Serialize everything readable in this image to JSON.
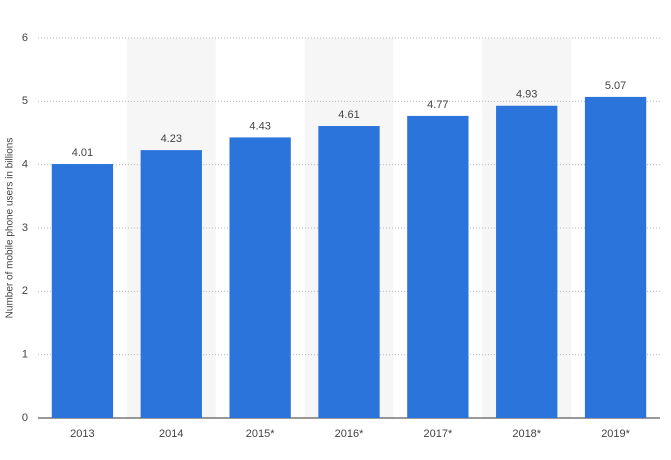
{
  "chart_data": {
    "type": "bar",
    "y_axis_label": "Number of mobile phone users in billions",
    "categories": [
      "2013",
      "2014",
      "2015*",
      "2016*",
      "2017*",
      "2018*",
      "2019*"
    ],
    "values": [
      4.01,
      4.23,
      4.43,
      4.61,
      4.77,
      4.93,
      5.07
    ],
    "color": "#2a74db",
    "ylim": [
      0,
      6
    ],
    "yticks": [
      0,
      1,
      2,
      3,
      4,
      5,
      6
    ],
    "grid": true
  }
}
